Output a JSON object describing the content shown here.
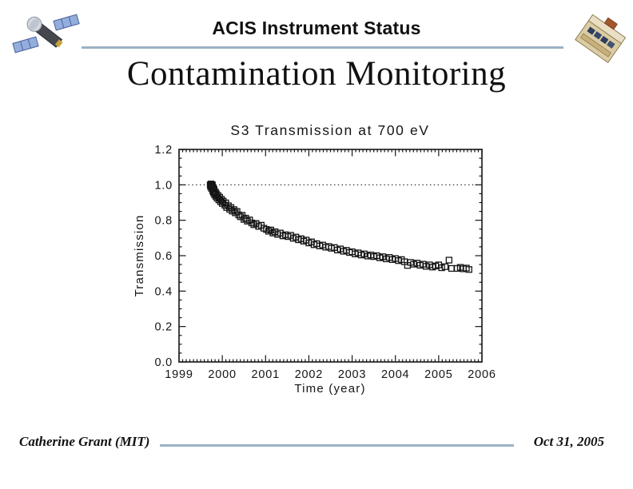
{
  "header": {
    "title": "ACIS Instrument Status"
  },
  "heading": "Contamination Monitoring",
  "footer": {
    "author": "Catherine Grant (MIT)",
    "date": "Oct 31, 2005"
  },
  "icons": {
    "left": "chandra-spacecraft-logo",
    "right": "acis-instrument-logo"
  },
  "colors": {
    "rule": "#9cb2c4",
    "ink": "#151515"
  },
  "chart_data": {
    "type": "scatter",
    "title": "S3 Transmission at 700 eV",
    "xlabel": "Time (year)",
    "ylabel": "Transmission",
    "xlim": [
      1999,
      2006
    ],
    "ylim": [
      0.0,
      1.2
    ],
    "xticks": [
      1999,
      2000,
      2001,
      2002,
      2003,
      2004,
      2005,
      2006
    ],
    "yticks": [
      0.0,
      0.2,
      0.4,
      0.6,
      0.8,
      1.0,
      1.2
    ],
    "x_minor_per_major": 12,
    "y_minor_per_major": 4,
    "grid": false,
    "legend": "none",
    "reference_line_y": 1.0,
    "reference_line_style": "dotted",
    "marker": "open-square",
    "marker_size_px": 7,
    "points": [
      [
        1999.72,
        1.0
      ],
      [
        1999.73,
        0.99
      ],
      [
        1999.74,
        1.005
      ],
      [
        1999.75,
        0.98
      ],
      [
        1999.76,
        0.995
      ],
      [
        1999.77,
        1.0
      ],
      [
        1999.78,
        0.965
      ],
      [
        1999.79,
        0.985
      ],
      [
        1999.8,
        0.955
      ],
      [
        1999.81,
        0.975
      ],
      [
        1999.82,
        0.945
      ],
      [
        1999.84,
        0.96
      ],
      [
        1999.85,
        0.935
      ],
      [
        1999.86,
        0.95
      ],
      [
        1999.88,
        0.925
      ],
      [
        1999.9,
        0.94
      ],
      [
        1999.92,
        0.915
      ],
      [
        1999.94,
        0.93
      ],
      [
        1999.96,
        0.905
      ],
      [
        1999.98,
        0.918
      ],
      [
        2000.0,
        0.895
      ],
      [
        2000.02,
        0.908
      ],
      [
        2000.06,
        0.885
      ],
      [
        2000.08,
        0.898
      ],
      [
        2000.1,
        0.872
      ],
      [
        2000.14,
        0.882
      ],
      [
        2000.17,
        0.862
      ],
      [
        2000.2,
        0.872
      ],
      [
        2000.23,
        0.852
      ],
      [
        2000.27,
        0.86
      ],
      [
        2000.3,
        0.842
      ],
      [
        2000.34,
        0.85
      ],
      [
        2000.38,
        0.83
      ],
      [
        2000.42,
        0.82
      ],
      [
        2000.46,
        0.828
      ],
      [
        2000.5,
        0.805
      ],
      [
        2000.54,
        0.812
      ],
      [
        2000.58,
        0.795
      ],
      [
        2000.63,
        0.802
      ],
      [
        2000.68,
        0.785
      ],
      [
        2000.73,
        0.775
      ],
      [
        2000.78,
        0.782
      ],
      [
        2000.84,
        0.765
      ],
      [
        2000.9,
        0.772
      ],
      [
        2000.96,
        0.755
      ],
      [
        2001.02,
        0.748
      ],
      [
        2001.07,
        0.738
      ],
      [
        2001.12,
        0.745
      ],
      [
        2001.17,
        0.728
      ],
      [
        2001.22,
        0.735
      ],
      [
        2001.28,
        0.72
      ],
      [
        2001.34,
        0.728
      ],
      [
        2001.4,
        0.712
      ],
      [
        2001.46,
        0.718
      ],
      [
        2001.52,
        0.708
      ],
      [
        2001.58,
        0.715
      ],
      [
        2001.64,
        0.698
      ],
      [
        2001.7,
        0.705
      ],
      [
        2001.76,
        0.69
      ],
      [
        2001.82,
        0.696
      ],
      [
        2001.88,
        0.682
      ],
      [
        2001.94,
        0.688
      ],
      [
        2002.0,
        0.672
      ],
      [
        2002.06,
        0.678
      ],
      [
        2002.12,
        0.662
      ],
      [
        2002.18,
        0.668
      ],
      [
        2002.25,
        0.655
      ],
      [
        2002.32,
        0.66
      ],
      [
        2002.39,
        0.648
      ],
      [
        2002.46,
        0.652
      ],
      [
        2002.52,
        0.642
      ],
      [
        2002.59,
        0.646
      ],
      [
        2002.66,
        0.632
      ],
      [
        2002.73,
        0.638
      ],
      [
        2002.8,
        0.625
      ],
      [
        2002.87,
        0.63
      ],
      [
        2002.94,
        0.618
      ],
      [
        2003.0,
        0.622
      ],
      [
        2003.07,
        0.61
      ],
      [
        2003.14,
        0.616
      ],
      [
        2003.21,
        0.604
      ],
      [
        2003.28,
        0.61
      ],
      [
        2003.36,
        0.598
      ],
      [
        2003.43,
        0.604
      ],
      [
        2003.5,
        0.595
      ],
      [
        2003.57,
        0.6
      ],
      [
        2003.64,
        0.588
      ],
      [
        2003.71,
        0.594
      ],
      [
        2003.79,
        0.582
      ],
      [
        2003.86,
        0.59
      ],
      [
        2003.93,
        0.578
      ],
      [
        2004.0,
        0.584
      ],
      [
        2004.07,
        0.572
      ],
      [
        2004.14,
        0.578
      ],
      [
        2004.21,
        0.566
      ],
      [
        2004.28,
        0.545
      ],
      [
        2004.35,
        0.562
      ],
      [
        2004.42,
        0.552
      ],
      [
        2004.5,
        0.558
      ],
      [
        2004.57,
        0.546
      ],
      [
        2004.64,
        0.552
      ],
      [
        2004.71,
        0.54
      ],
      [
        2004.79,
        0.548
      ],
      [
        2004.86,
        0.536
      ],
      [
        2004.93,
        0.542
      ],
      [
        2005.0,
        0.548
      ],
      [
        2005.07,
        0.532
      ],
      [
        2005.15,
        0.538
      ],
      [
        2005.24,
        0.575
      ],
      [
        2005.3,
        0.528
      ],
      [
        2005.42,
        0.528
      ],
      [
        2005.5,
        0.534
      ],
      [
        2005.57,
        0.526
      ],
      [
        2005.64,
        0.53
      ],
      [
        2005.7,
        0.522
      ]
    ]
  }
}
